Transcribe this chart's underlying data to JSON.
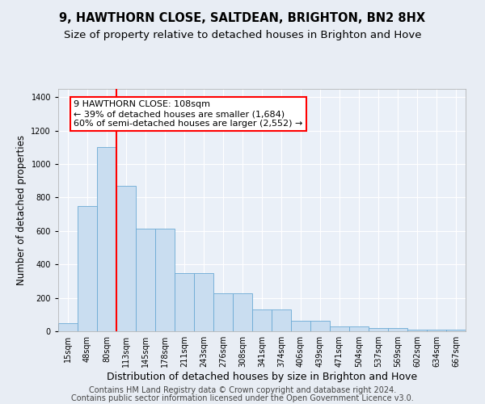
{
  "title": "9, HAWTHORN CLOSE, SALTDEAN, BRIGHTON, BN2 8HX",
  "subtitle": "Size of property relative to detached houses in Brighton and Hove",
  "xlabel": "Distribution of detached houses by size in Brighton and Hove",
  "ylabel": "Number of detached properties",
  "bar_labels": [
    "15sqm",
    "48sqm",
    "80sqm",
    "113sqm",
    "145sqm",
    "178sqm",
    "211sqm",
    "243sqm",
    "276sqm",
    "308sqm",
    "341sqm",
    "374sqm",
    "406sqm",
    "439sqm",
    "471sqm",
    "504sqm",
    "537sqm",
    "569sqm",
    "602sqm",
    "634sqm",
    "667sqm"
  ],
  "bar_values": [
    50,
    750,
    1100,
    870,
    615,
    615,
    350,
    350,
    225,
    225,
    130,
    130,
    65,
    65,
    30,
    30,
    20,
    20,
    12,
    10,
    10
  ],
  "bar_color": "#c9ddf0",
  "bar_edge_color": "#6aaad4",
  "vline_x": 2.5,
  "vline_color": "red",
  "annotation_text": "9 HAWTHORN CLOSE: 108sqm\n← 39% of detached houses are smaller (1,684)\n60% of semi-detached houses are larger (2,552) →",
  "annotation_box_color": "white",
  "annotation_box_edge": "red",
  "ylim": [
    0,
    1450
  ],
  "yticks": [
    0,
    200,
    400,
    600,
    800,
    1000,
    1200,
    1400
  ],
  "background_color": "#e8edf4",
  "plot_bg_color": "#eaf0f8",
  "footer1": "Contains HM Land Registry data © Crown copyright and database right 2024.",
  "footer2": "Contains public sector information licensed under the Open Government Licence v3.0.",
  "title_fontsize": 10.5,
  "subtitle_fontsize": 9.5,
  "ylabel_fontsize": 8.5,
  "xlabel_fontsize": 9,
  "tick_fontsize": 7,
  "footer_fontsize": 7,
  "annot_fontsize": 8
}
